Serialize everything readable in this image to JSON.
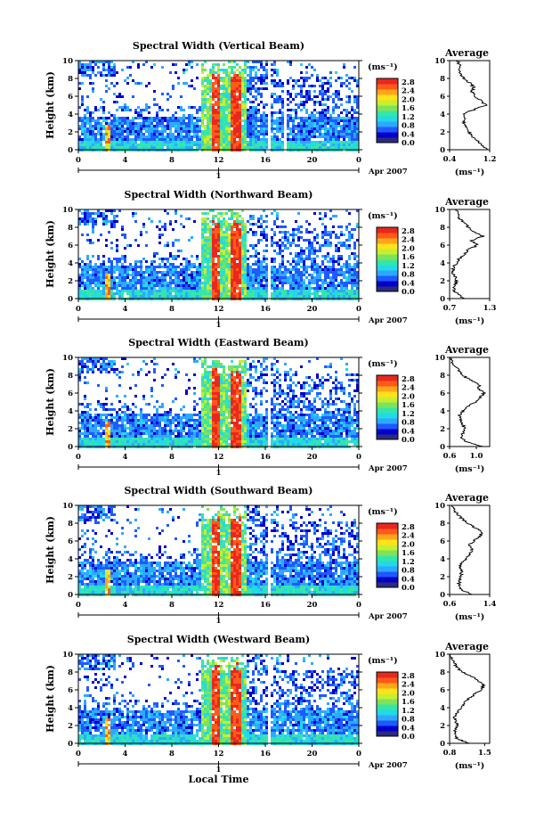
{
  "figure": {
    "xlabel": "Local Time",
    "date_label": "Apr 2007",
    "day_label": "1",
    "colorbar_unit": "(ms⁻¹)",
    "average_title": "Average"
  },
  "chart_data": [
    {
      "type": "heatmap",
      "title": "Spectral Width (Vertical Beam)",
      "xlabel": "Local Time",
      "ylabel": "Height (km)",
      "xlim": [
        0,
        24
      ],
      "ylim": [
        0,
        10
      ],
      "xticks": [
        "0",
        "4",
        "8",
        "12",
        "16",
        "20",
        "0"
      ],
      "yticks": [
        "0",
        "2",
        "4",
        "6",
        "8",
        "10"
      ],
      "colorbar": {
        "label": "(ms⁻¹)",
        "ticks": [
          "2.8",
          "2.4",
          "2.0",
          "1.6",
          "1.2",
          "0.8",
          "0.4",
          "0.0"
        ]
      },
      "gaps_hours": [
        16.3,
        17.5
      ],
      "average_profile": {
        "title": "Average",
        "xlabel": "(ms⁻¹)",
        "xlim": [
          0.4,
          1.2
        ],
        "xticks": [
          "0.4",
          "1.2"
        ],
        "height_km": [
          0,
          0.5,
          1,
          1.5,
          2,
          2.5,
          3,
          3.5,
          4,
          4.5,
          5,
          5.5,
          6,
          6.5,
          7,
          7.5,
          8,
          8.5,
          9,
          9.5,
          10
        ],
        "values": [
          1.15,
          1.05,
          0.95,
          0.85,
          0.78,
          0.72,
          0.68,
          0.72,
          0.66,
          0.88,
          1.12,
          1.02,
          0.92,
          0.85,
          0.88,
          0.8,
          0.68,
          0.62,
          0.58,
          0.6,
          0.55
        ]
      }
    },
    {
      "type": "heatmap",
      "title": "Spectral Width (Northward Beam)",
      "xlabel": "Local Time",
      "ylabel": "Height (km)",
      "xlim": [
        0,
        24
      ],
      "ylim": [
        0,
        10
      ],
      "xticks": [
        "0",
        "4",
        "8",
        "12",
        "16",
        "20",
        "0"
      ],
      "yticks": [
        "0",
        "2",
        "4",
        "6",
        "8",
        "10"
      ],
      "colorbar": {
        "label": "(ms⁻¹)",
        "ticks": [
          "2.8",
          "2.4",
          "2.0",
          "1.6",
          "1.2",
          "0.8",
          "0.4",
          "0.0"
        ]
      },
      "gaps_hours": [
        16.3
      ],
      "average_profile": {
        "title": "Average",
        "xlabel": "(ms⁻¹)",
        "xlim": [
          0.7,
          1.3
        ],
        "xticks": [
          "0.7",
          "1.3"
        ],
        "height_km": [
          0,
          0.5,
          1,
          1.5,
          2,
          2.5,
          3,
          3.5,
          4,
          4.5,
          5,
          5.5,
          6,
          6.5,
          7,
          7.5,
          8,
          8.5,
          9,
          9.5,
          10
        ],
        "values": [
          0.92,
          0.82,
          0.76,
          0.78,
          0.8,
          0.78,
          0.74,
          0.76,
          0.8,
          0.85,
          0.92,
          0.98,
          1.12,
          1.02,
          1.2,
          1.05,
          0.98,
          0.92,
          0.85,
          0.82,
          0.8
        ]
      }
    },
    {
      "type": "heatmap",
      "title": "Spectral Width (Eastward Beam)",
      "xlabel": "Local Time",
      "ylabel": "Height (km)",
      "xlim": [
        0,
        24
      ],
      "ylim": [
        0,
        10
      ],
      "xticks": [
        "0",
        "4",
        "8",
        "12",
        "16",
        "20",
        "0"
      ],
      "yticks": [
        "0",
        "2",
        "4",
        "6",
        "8",
        "10"
      ],
      "colorbar": {
        "label": "(ms⁻¹)",
        "ticks": [
          "2.8",
          "2.4",
          "2.0",
          "1.6",
          "1.2",
          "0.8",
          "0.4",
          "0.0"
        ]
      },
      "gaps_hours": [
        16.3
      ],
      "average_profile": {
        "title": "Average",
        "xlabel": "(ms⁻¹)",
        "xlim": [
          0.6,
          1.2
        ],
        "xticks": [
          "0.6",
          "1.0"
        ],
        "height_km": [
          0,
          0.5,
          1,
          1.5,
          2,
          2.5,
          3,
          3.5,
          4,
          4.5,
          5,
          5.5,
          6,
          6.5,
          7,
          7.5,
          8,
          8.5,
          9,
          9.5,
          10
        ],
        "values": [
          1.1,
          0.85,
          0.78,
          0.8,
          0.82,
          0.8,
          0.76,
          0.75,
          0.8,
          0.88,
          0.98,
          1.05,
          1.12,
          1.02,
          1.05,
          0.9,
          0.8,
          0.74,
          0.68,
          0.64,
          0.62
        ]
      }
    },
    {
      "type": "heatmap",
      "title": "Spectral Width (Southward Beam)",
      "xlabel": "Local Time",
      "ylabel": "Height (km)",
      "xlim": [
        0,
        24
      ],
      "ylim": [
        0,
        10
      ],
      "xticks": [
        "0",
        "4",
        "8",
        "12",
        "16",
        "20",
        "0"
      ],
      "yticks": [
        "0",
        "2",
        "4",
        "6",
        "8",
        "10"
      ],
      "colorbar": {
        "label": "(ms⁻¹)",
        "ticks": [
          "2.8",
          "2.4",
          "2.0",
          "1.6",
          "1.2",
          "0.8",
          "0.4",
          "0.0"
        ]
      },
      "gaps_hours": [
        16.3
      ],
      "average_profile": {
        "title": "Average",
        "xlabel": "(ms⁻¹)",
        "xlim": [
          0.6,
          1.4
        ],
        "xticks": [
          "0.6",
          "1.4"
        ],
        "height_km": [
          0,
          0.5,
          1,
          1.5,
          2,
          2.5,
          3,
          3.5,
          4,
          4.5,
          5,
          5.5,
          6,
          6.5,
          7,
          7.5,
          8,
          8.5,
          9,
          9.5,
          10
        ],
        "values": [
          1.05,
          0.85,
          0.78,
          0.8,
          0.82,
          0.84,
          0.8,
          0.85,
          0.92,
          1.0,
          1.05,
          0.98,
          1.08,
          1.2,
          1.25,
          1.1,
          0.95,
          0.85,
          0.75,
          0.7,
          0.65
        ]
      }
    },
    {
      "type": "heatmap",
      "title": "Spectral Width (Westward Beam)",
      "xlabel": "Local Time",
      "ylabel": "Height (km)",
      "xlim": [
        0,
        24
      ],
      "ylim": [
        0,
        10
      ],
      "xticks": [
        "0",
        "4",
        "8",
        "12",
        "16",
        "20",
        "0"
      ],
      "yticks": [
        "0",
        "2",
        "4",
        "6",
        "8",
        "10"
      ],
      "colorbar": {
        "label": "(ms⁻¹)",
        "ticks": [
          "2.8",
          "2.4",
          "2.0",
          "1.6",
          "1.2",
          "0.8",
          "0.4",
          "0.0"
        ]
      },
      "gaps_hours": [
        16.3
      ],
      "average_profile": {
        "title": "Average",
        "xlabel": "(ms⁻¹)",
        "xlim": [
          0.8,
          1.6
        ],
        "xticks": [
          "0.8",
          "1.5"
        ],
        "height_km": [
          0,
          0.5,
          1,
          1.5,
          2,
          2.5,
          3,
          3.5,
          4,
          4.5,
          5,
          5.5,
          6,
          6.5,
          7,
          7.5,
          8,
          8.5,
          9,
          9.5,
          10
        ],
        "values": [
          1.2,
          0.95,
          0.9,
          0.92,
          0.95,
          0.92,
          0.9,
          0.96,
          1.02,
          1.1,
          1.18,
          1.3,
          1.42,
          1.48,
          1.38,
          1.25,
          1.05,
          0.95,
          0.9,
          0.85,
          0.82
        ]
      }
    }
  ]
}
